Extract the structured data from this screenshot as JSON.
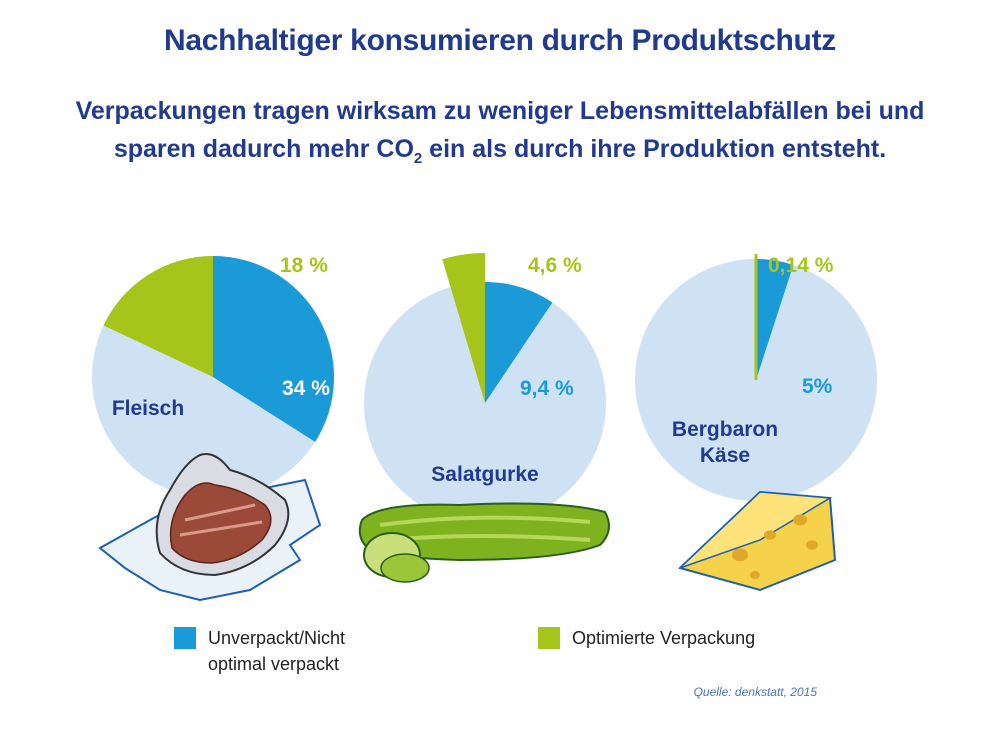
{
  "header": {
    "title": "Nachhaltiger konsumieren durch Produktschutz",
    "subtitle_part1": "Verpackungen tragen wirksam zu weniger Lebensmittelabfällen bei und sparen dadurch mehr CO",
    "subtitle_sub": "2",
    "subtitle_part2": " ein als durch ihre Produktion entsteht."
  },
  "chart_data": {
    "type": "pie",
    "series": [
      {
        "name": "Unverpackt/Nicht optimal verpackt",
        "color": "#1a9ad6"
      },
      {
        "name": "Optimierte Verpackung",
        "color": "#a6c41a"
      }
    ],
    "pies": [
      {
        "label": "Fleisch",
        "label_lines": [
          "Fleisch"
        ],
        "unpacked": 34,
        "unpacked_label": "34 %",
        "optimized": 18,
        "optimized_label": "18 %",
        "icon": "steak-icon"
      },
      {
        "label": "Salatgurke",
        "label_lines": [
          "Salatgurke"
        ],
        "unpacked": 9.4,
        "unpacked_label": "9,4 %",
        "optimized": 4.6,
        "optimized_label": "4,6 %",
        "icon": "cucumber-icon"
      },
      {
        "label": "Bergbaron Käse",
        "label_lines": [
          "Bergbaron",
          "Käse"
        ],
        "unpacked": 5,
        "unpacked_label": "5%",
        "optimized": 0.14,
        "optimized_label": "0,14 %",
        "icon": "cheese-icon"
      }
    ],
    "colors": {
      "background_pie": "#cfe2f3",
      "text_dark": "#213a8f",
      "text_green": "#a6c41a",
      "text_blue": "#1a9ad6"
    }
  },
  "legend": {
    "unpacked_line1": "Unverpackt/Nicht",
    "unpacked_line2": "optimal verpackt",
    "optimized": "Optimierte Verpackung"
  },
  "source": "Quelle: denkstatt, 2015"
}
